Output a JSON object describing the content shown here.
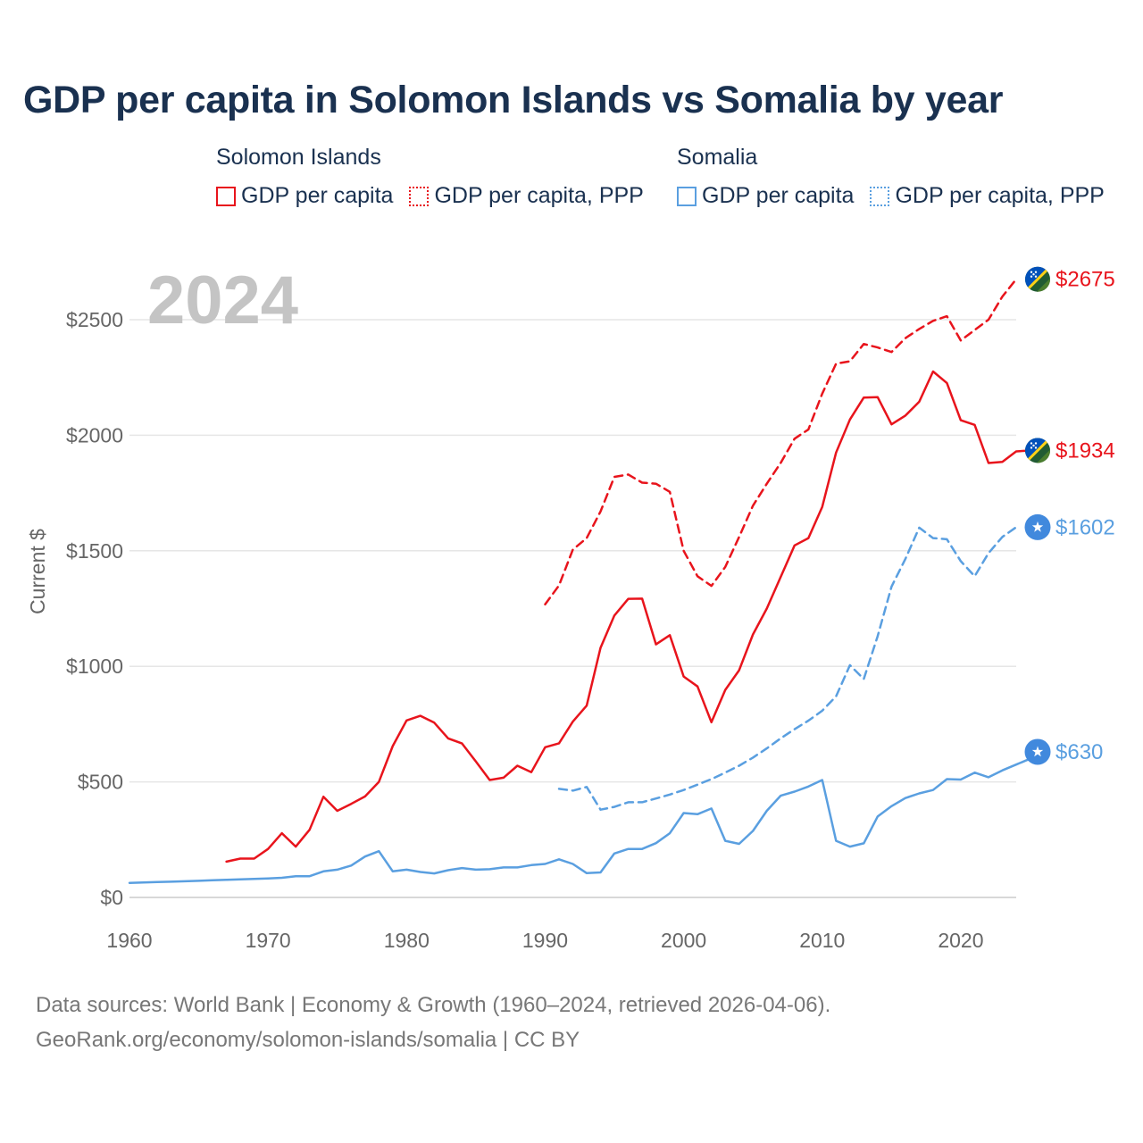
{
  "title": "GDP per capita in Solomon Islands vs Somalia by year",
  "legend": {
    "groups": [
      {
        "name": "Solomon Islands",
        "color": "#e8141c",
        "items": [
          {
            "label": "GDP per capita",
            "style": "solid"
          },
          {
            "label": "GDP per capita, PPP",
            "style": "dotted"
          }
        ]
      },
      {
        "name": "Somalia",
        "color": "#5a9fe0",
        "items": [
          {
            "label": "GDP per capita",
            "style": "solid"
          },
          {
            "label": "GDP per capita, PPP",
            "style": "dotted"
          }
        ]
      }
    ]
  },
  "footer": {
    "line1": "Data sources: World Bank | Economy & Growth (1960–2024, retrieved 2026-04-06).",
    "line2": "GeoRank.org/economy/solomon-islands/somalia | CC BY"
  },
  "chart_data": {
    "type": "line",
    "title": "GDP per capita in Solomon Islands vs Somalia by year",
    "year_label": "2024",
    "ylabel": "Current $",
    "xlabel": "",
    "xlim": [
      1960,
      2024
    ],
    "ylim": [
      0,
      2700
    ],
    "x_ticks": [
      1960,
      1970,
      1980,
      1990,
      2000,
      2010,
      2020
    ],
    "y_ticks": [
      0,
      500,
      1000,
      1500,
      2000,
      2500
    ],
    "y_tick_labels": [
      "$0",
      "$500",
      "$1000",
      "$1500",
      "$2000",
      "$2500"
    ],
    "grid": true,
    "series": [
      {
        "name": "Solomon Islands GDP per capita",
        "country": "Solomon Islands",
        "color": "#e8141c",
        "dash": "solid",
        "icon": "solomon-islands-flag-icon",
        "end_label": "$1934",
        "start_year": 1967,
        "values": [
          155,
          168,
          168,
          210,
          278,
          220,
          293,
          436,
          375,
          405,
          437,
          500,
          655,
          766,
          786,
          756,
          688,
          666,
          588,
          508,
          518,
          570,
          542,
          650,
          667,
          761,
          830,
          1080,
          1220,
          1292,
          1293,
          1095,
          1135,
          956,
          913,
          758,
          898,
          983,
          1138,
          1250,
          1386,
          1523,
          1555,
          1690,
          1925,
          2068,
          2163,
          2165,
          2047,
          2085,
          2145,
          2276,
          2226,
          2065,
          2045,
          1880,
          1885,
          1930,
          1934
        ]
      },
      {
        "name": "Solomon Islands GDP per capita, PPP",
        "country": "Solomon Islands",
        "color": "#e8141c",
        "dash": "dashed",
        "icon": "solomon-islands-flag-icon",
        "end_label": "$2675",
        "start_year": 1990,
        "values": [
          1268,
          1350,
          1505,
          1555,
          1670,
          1820,
          1830,
          1795,
          1790,
          1755,
          1500,
          1390,
          1348,
          1430,
          1560,
          1695,
          1790,
          1880,
          1985,
          2025,
          2180,
          2310,
          2320,
          2395,
          2380,
          2360,
          2420,
          2460,
          2495,
          2515,
          2410,
          2455,
          2500,
          2600,
          2675
        ]
      },
      {
        "name": "Somalia GDP per capita",
        "country": "Somalia",
        "color": "#5a9fe0",
        "dash": "solid",
        "icon": "somalia-flag-icon",
        "end_label": "$630",
        "start_year": 1960,
        "values": [
          63,
          65,
          67,
          68,
          70,
          72,
          74,
          76,
          78,
          80,
          82,
          85,
          92,
          92,
          113,
          120,
          138,
          177,
          200,
          113,
          120,
          110,
          104,
          118,
          127,
          120,
          122,
          130,
          130,
          140,
          145,
          165,
          145,
          105,
          108,
          190,
          210,
          210,
          235,
          278,
          365,
          360,
          385,
          245,
          232,
          288,
          375,
          440,
          458,
          480,
          508,
          245,
          220,
          234,
          350,
          395,
          430,
          450,
          465,
          512,
          510,
          540,
          520,
          550,
          575,
          600,
          630
        ]
      },
      {
        "name": "Somalia GDP per capita, PPP",
        "country": "Somalia",
        "color": "#5a9fe0",
        "dash": "dashed",
        "icon": "somalia-flag-icon",
        "end_label": "$1602",
        "start_year": 1991,
        "values": [
          470,
          462,
          478,
          380,
          392,
          412,
          412,
          428,
          445,
          465,
          488,
          512,
          540,
          570,
          605,
          645,
          688,
          728,
          765,
          808,
          870,
          1005,
          945,
          1130,
          1345,
          1465,
          1600,
          1555,
          1550,
          1455,
          1390,
          1490,
          1560,
          1602
        ]
      }
    ]
  }
}
